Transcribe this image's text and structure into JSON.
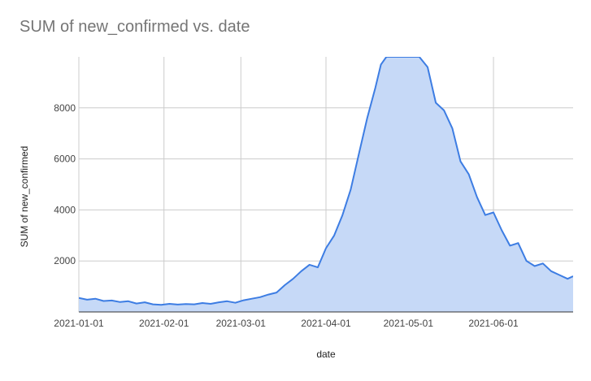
{
  "chart_data": {
    "type": "area",
    "title": "SUM of new_confirmed vs. date",
    "xlabel": "date",
    "ylabel": "SUM of new_confirmed",
    "xlim": [
      "2021-01-01",
      "2021-06-30"
    ],
    "ylim": [
      0,
      10000
    ],
    "yticks": [
      2000,
      4000,
      6000,
      8000
    ],
    "ytick_labels": [
      "2000",
      "4000",
      "6000",
      "8000"
    ],
    "xticks": [
      "2021-01-01",
      "2021-02-01",
      "2021-03-01",
      "2021-04-01",
      "2021-05-01",
      "2021-06-01"
    ],
    "xtick_labels": [
      "2021-01-01",
      "2021-02-01",
      "2021-03-01",
      "2021-04-01",
      "2021-05-01",
      "2021-06-01"
    ],
    "grid": true,
    "legend": "none",
    "colors": {
      "line": "#3d7de3",
      "fill": "#c6d9f7",
      "grid": "#cccccc",
      "title": "#757575"
    },
    "series": [
      {
        "x": [
          "2021-01-01",
          "2021-01-04",
          "2021-01-07",
          "2021-01-10",
          "2021-01-13",
          "2021-01-16",
          "2021-01-19",
          "2021-01-22",
          "2021-01-25",
          "2021-01-28",
          "2021-01-31",
          "2021-02-03",
          "2021-02-06",
          "2021-02-09",
          "2021-02-12",
          "2021-02-15",
          "2021-02-18",
          "2021-02-21",
          "2021-02-24",
          "2021-02-27",
          "2021-03-02",
          "2021-03-05",
          "2021-03-08",
          "2021-03-11",
          "2021-03-14",
          "2021-03-17",
          "2021-03-20",
          "2021-03-23",
          "2021-03-26",
          "2021-03-29",
          "2021-04-01",
          "2021-04-04",
          "2021-04-07",
          "2021-04-10",
          "2021-04-13",
          "2021-04-16",
          "2021-04-19",
          "2021-04-21",
          "2021-04-23",
          "2021-04-26",
          "2021-04-29",
          "2021-05-02",
          "2021-05-05",
          "2021-05-08",
          "2021-05-11",
          "2021-05-14",
          "2021-05-17",
          "2021-05-20",
          "2021-05-23",
          "2021-05-26",
          "2021-05-29",
          "2021-06-01",
          "2021-06-04",
          "2021-06-07",
          "2021-06-10",
          "2021-06-13",
          "2021-06-16",
          "2021-06-19",
          "2021-06-22",
          "2021-06-25",
          "2021-06-28",
          "2021-06-30"
        ],
        "y": [
          550,
          480,
          520,
          430,
          450,
          390,
          420,
          330,
          380,
          300,
          280,
          320,
          290,
          310,
          300,
          350,
          320,
          380,
          420,
          360,
          460,
          520,
          580,
          680,
          760,
          1050,
          1300,
          1600,
          1850,
          1750,
          2500,
          3000,
          3800,
          4800,
          6200,
          7600,
          8800,
          9700,
          10000,
          10000,
          10000,
          10000,
          10000,
          9600,
          8200,
          7900,
          7200,
          5900,
          5400,
          4500,
          3800,
          3900,
          3200,
          2600,
          2700,
          2000,
          1800,
          1900,
          1600,
          1450,
          1300,
          1400
        ]
      }
    ]
  }
}
